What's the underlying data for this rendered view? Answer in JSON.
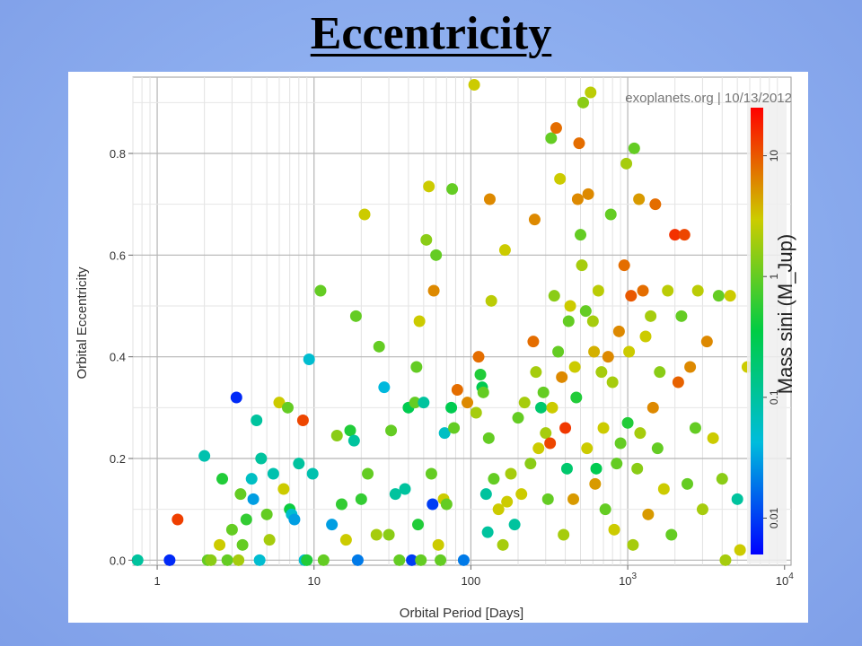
{
  "slide": {
    "title": "Eccentricity"
  },
  "chart_data": {
    "type": "scatter",
    "title": "",
    "watermark": "exoplanets.org | 10/13/2012",
    "xlabel": "Orbital Period [Days]",
    "ylabel": "Orbital Eccentricity",
    "xscale": "log",
    "xlim": [
      0.7,
      11000
    ],
    "ylim": [
      -0.01,
      0.95
    ],
    "x_ticks": [
      {
        "value": 1,
        "label": "1"
      },
      {
        "value": 10,
        "label": "10"
      },
      {
        "value": 100,
        "label": "100"
      },
      {
        "value": 1000,
        "label": "10",
        "sup": "3"
      },
      {
        "value": 10000,
        "label": "10",
        "sup": "4"
      }
    ],
    "y_ticks": [
      {
        "value": 0.0,
        "label": "0.0"
      },
      {
        "value": 0.2,
        "label": "0.2"
      },
      {
        "value": 0.4,
        "label": "0.4"
      },
      {
        "value": 0.6,
        "label": "0.6"
      },
      {
        "value": 0.8,
        "label": "0.8"
      }
    ],
    "grid": true,
    "colorbar": {
      "label": "Mass sini (M_Jup)",
      "scale": "log",
      "range": [
        0.005,
        25
      ],
      "ticks": [
        {
          "value": 0.01,
          "label": "0.01"
        },
        {
          "value": 0.1,
          "label": "0.1"
        },
        {
          "value": 1,
          "label": "1"
        },
        {
          "value": 10,
          "label": "10"
        }
      ],
      "colors": [
        "#0000ff",
        "#00bcdc",
        "#00cc44",
        "#cccc00",
        "#ff0000"
      ]
    },
    "points": [
      [
        0.75,
        0.0,
        0.1
      ],
      [
        1.2,
        0.0,
        0.008
      ],
      [
        1.35,
        0.08,
        13
      ],
      [
        2.0,
        0.205,
        0.08
      ],
      [
        2.1,
        0.0,
        1
      ],
      [
        2.2,
        0.0,
        1.5
      ],
      [
        2.5,
        0.03,
        3
      ],
      [
        2.6,
        0.16,
        0.5
      ],
      [
        2.8,
        0.0,
        1
      ],
      [
        3.0,
        0.06,
        1
      ],
      [
        3.2,
        0.32,
        0.008
      ],
      [
        3.3,
        0.0,
        2
      ],
      [
        3.4,
        0.13,
        1
      ],
      [
        3.5,
        0.03,
        1
      ],
      [
        3.7,
        0.08,
        0.6
      ],
      [
        4.0,
        0.16,
        0.06
      ],
      [
        4.1,
        0.12,
        0.03
      ],
      [
        4.3,
        0.275,
        0.1
      ],
      [
        4.5,
        0.0,
        0.05
      ],
      [
        4.6,
        0.2,
        0.1
      ],
      [
        5.0,
        0.09,
        1
      ],
      [
        5.2,
        0.04,
        2
      ],
      [
        5.5,
        0.17,
        0.08
      ],
      [
        6.0,
        0.31,
        3
      ],
      [
        6.4,
        0.14,
        3
      ],
      [
        6.8,
        0.3,
        1
      ],
      [
        7.0,
        0.1,
        0.4
      ],
      [
        7.2,
        0.09,
        0.05
      ],
      [
        7.5,
        0.08,
        0.03
      ],
      [
        8.0,
        0.19,
        0.1
      ],
      [
        8.5,
        0.275,
        12
      ],
      [
        8.7,
        0.0,
        0.05
      ],
      [
        9.0,
        0.0,
        0.5
      ],
      [
        9.3,
        0.395,
        0.05
      ],
      [
        9.8,
        0.17,
        0.08
      ],
      [
        11.0,
        0.53,
        1
      ],
      [
        11.5,
        0.0,
        1
      ],
      [
        13.0,
        0.07,
        0.03
      ],
      [
        14.0,
        0.245,
        1.5
      ],
      [
        15.0,
        0.11,
        0.6
      ],
      [
        16.0,
        0.04,
        3
      ],
      [
        17.0,
        0.255,
        0.5
      ],
      [
        18.0,
        0.235,
        0.1
      ],
      [
        18.5,
        0.48,
        1
      ],
      [
        19.0,
        0.0,
        0.02
      ],
      [
        20.0,
        0.12,
        0.6
      ],
      [
        21.0,
        0.68,
        3
      ],
      [
        22.0,
        0.17,
        1
      ],
      [
        25.0,
        0.05,
        2
      ],
      [
        26.0,
        0.42,
        1
      ],
      [
        28.0,
        0.34,
        0.04
      ],
      [
        30.0,
        0.05,
        1.5
      ],
      [
        31.0,
        0.255,
        1
      ],
      [
        33.0,
        0.13,
        0.1
      ],
      [
        35.0,
        0.0,
        1
      ],
      [
        38.0,
        0.14,
        0.1
      ],
      [
        40.0,
        0.3,
        0.3
      ],
      [
        42.0,
        0.0,
        0.01
      ],
      [
        44.0,
        0.31,
        1
      ],
      [
        45.0,
        0.38,
        1
      ],
      [
        46.0,
        0.07,
        0.5
      ],
      [
        47.0,
        0.47,
        3
      ],
      [
        48.0,
        0.0,
        1
      ],
      [
        50.0,
        0.31,
        0.1
      ],
      [
        52.0,
        0.63,
        1.5
      ],
      [
        54.0,
        0.735,
        3
      ],
      [
        56.0,
        0.17,
        1
      ],
      [
        57.0,
        0.11,
        0.01
      ],
      [
        58.0,
        0.53,
        6
      ],
      [
        60.0,
        0.6,
        1
      ],
      [
        62.0,
        0.03,
        3
      ],
      [
        64.0,
        0.0,
        1
      ],
      [
        67.0,
        0.12,
        3
      ],
      [
        68.0,
        0.25,
        0.06
      ],
      [
        70.0,
        0.11,
        1
      ],
      [
        75.0,
        0.3,
        0.3
      ],
      [
        76.0,
        0.73,
        1
      ],
      [
        78.0,
        0.26,
        1
      ],
      [
        82.0,
        0.335,
        8
      ],
      [
        90.0,
        0.0,
        0.02
      ],
      [
        95.0,
        0.31,
        6
      ],
      [
        105.0,
        0.935,
        3
      ],
      [
        108.0,
        0.29,
        2
      ],
      [
        112.0,
        0.4,
        8
      ],
      [
        115.0,
        0.365,
        0.5
      ],
      [
        118.0,
        0.34,
        0.3
      ],
      [
        120.0,
        0.33,
        1
      ],
      [
        125.0,
        0.13,
        0.1
      ],
      [
        128.0,
        0.055,
        0.1
      ],
      [
        130.0,
        0.24,
        1
      ],
      [
        132.0,
        0.71,
        6
      ],
      [
        135.0,
        0.51,
        2.5
      ],
      [
        140.0,
        0.16,
        1
      ],
      [
        150.0,
        0.1,
        3
      ],
      [
        160.0,
        0.03,
        2
      ],
      [
        165.0,
        0.61,
        3
      ],
      [
        170.0,
        0.115,
        3
      ],
      [
        180.0,
        0.17,
        2
      ],
      [
        190.0,
        0.07,
        0.1
      ],
      [
        200.0,
        0.28,
        1
      ],
      [
        210.0,
        0.13,
        3
      ],
      [
        220.0,
        0.31,
        2
      ],
      [
        240.0,
        0.19,
        1.5
      ],
      [
        250.0,
        0.43,
        8
      ],
      [
        255.0,
        0.67,
        6
      ],
      [
        260.0,
        0.37,
        2
      ],
      [
        270.0,
        0.22,
        3
      ],
      [
        280.0,
        0.3,
        0.2
      ],
      [
        290.0,
        0.33,
        1
      ],
      [
        300.0,
        0.25,
        2
      ],
      [
        310.0,
        0.12,
        1
      ],
      [
        320.0,
        0.23,
        12
      ],
      [
        325.0,
        0.83,
        1
      ],
      [
        330.0,
        0.3,
        3
      ],
      [
        340.0,
        0.52,
        1.5
      ],
      [
        350.0,
        0.85,
        8
      ],
      [
        360.0,
        0.41,
        1
      ],
      [
        370.0,
        0.75,
        3
      ],
      [
        380.0,
        0.36,
        6
      ],
      [
        390.0,
        0.05,
        2
      ],
      [
        400.0,
        0.26,
        14
      ],
      [
        410.0,
        0.18,
        0.2
      ],
      [
        420.0,
        0.47,
        1
      ],
      [
        430.0,
        0.5,
        3
      ],
      [
        450.0,
        0.12,
        5
      ],
      [
        460.0,
        0.38,
        3
      ],
      [
        470.0,
        0.32,
        0.5
      ],
      [
        480.0,
        0.71,
        6
      ],
      [
        490.0,
        0.82,
        8
      ],
      [
        500.0,
        0.64,
        1
      ],
      [
        510.0,
        0.58,
        2
      ],
      [
        520.0,
        0.9,
        1.5
      ],
      [
        540.0,
        0.49,
        1
      ],
      [
        550.0,
        0.22,
        3
      ],
      [
        560.0,
        0.72,
        6
      ],
      [
        580.0,
        0.92,
        2.5
      ],
      [
        600.0,
        0.47,
        2
      ],
      [
        610.0,
        0.41,
        4
      ],
      [
        620.0,
        0.15,
        5
      ],
      [
        630.0,
        0.18,
        0.3
      ],
      [
        650.0,
        0.53,
        2.5
      ],
      [
        680.0,
        0.37,
        2
      ],
      [
        700.0,
        0.26,
        3
      ],
      [
        720.0,
        0.1,
        1
      ],
      [
        750.0,
        0.4,
        6
      ],
      [
        780.0,
        0.68,
        1
      ],
      [
        800.0,
        0.35,
        2
      ],
      [
        820.0,
        0.06,
        3
      ],
      [
        850.0,
        0.19,
        1
      ],
      [
        880.0,
        0.45,
        6
      ],
      [
        900.0,
        0.23,
        1
      ],
      [
        950.0,
        0.58,
        8
      ],
      [
        980.0,
        0.78,
        2
      ],
      [
        1000.0,
        0.27,
        0.5
      ],
      [
        1020.0,
        0.41,
        3
      ],
      [
        1050.0,
        0.52,
        10
      ],
      [
        1080.0,
        0.03,
        2
      ],
      [
        1100.0,
        0.81,
        1
      ],
      [
        1150.0,
        0.18,
        1.5
      ],
      [
        1180.0,
        0.71,
        5
      ],
      [
        1200.0,
        0.25,
        2
      ],
      [
        1250.0,
        0.53,
        8
      ],
      [
        1300.0,
        0.44,
        3
      ],
      [
        1350.0,
        0.09,
        5
      ],
      [
        1400.0,
        0.48,
        2
      ],
      [
        1450.0,
        0.3,
        6
      ],
      [
        1500.0,
        0.7,
        8
      ],
      [
        1550.0,
        0.22,
        1
      ],
      [
        1600.0,
        0.37,
        1.5
      ],
      [
        1700.0,
        0.14,
        3
      ],
      [
        1800.0,
        0.53,
        2.5
      ],
      [
        1900.0,
        0.05,
        1
      ],
      [
        2000.0,
        0.64,
        15
      ],
      [
        2100.0,
        0.35,
        9
      ],
      [
        2200.0,
        0.48,
        1
      ],
      [
        2300.0,
        0.64,
        12
      ],
      [
        2400.0,
        0.15,
        1
      ],
      [
        2500.0,
        0.38,
        6
      ],
      [
        2700.0,
        0.26,
        1
      ],
      [
        2800.0,
        0.53,
        2.5
      ],
      [
        3000.0,
        0.1,
        2
      ],
      [
        3200.0,
        0.43,
        6
      ],
      [
        3500.0,
        0.24,
        3
      ],
      [
        3800.0,
        0.52,
        1
      ],
      [
        4000.0,
        0.16,
        1.5
      ],
      [
        4200.0,
        0.0,
        2
      ],
      [
        4500.0,
        0.52,
        3
      ],
      [
        5000.0,
        0.12,
        0.1
      ],
      [
        5200.0,
        0.02,
        3
      ],
      [
        5800.0,
        0.38,
        3
      ]
    ]
  }
}
